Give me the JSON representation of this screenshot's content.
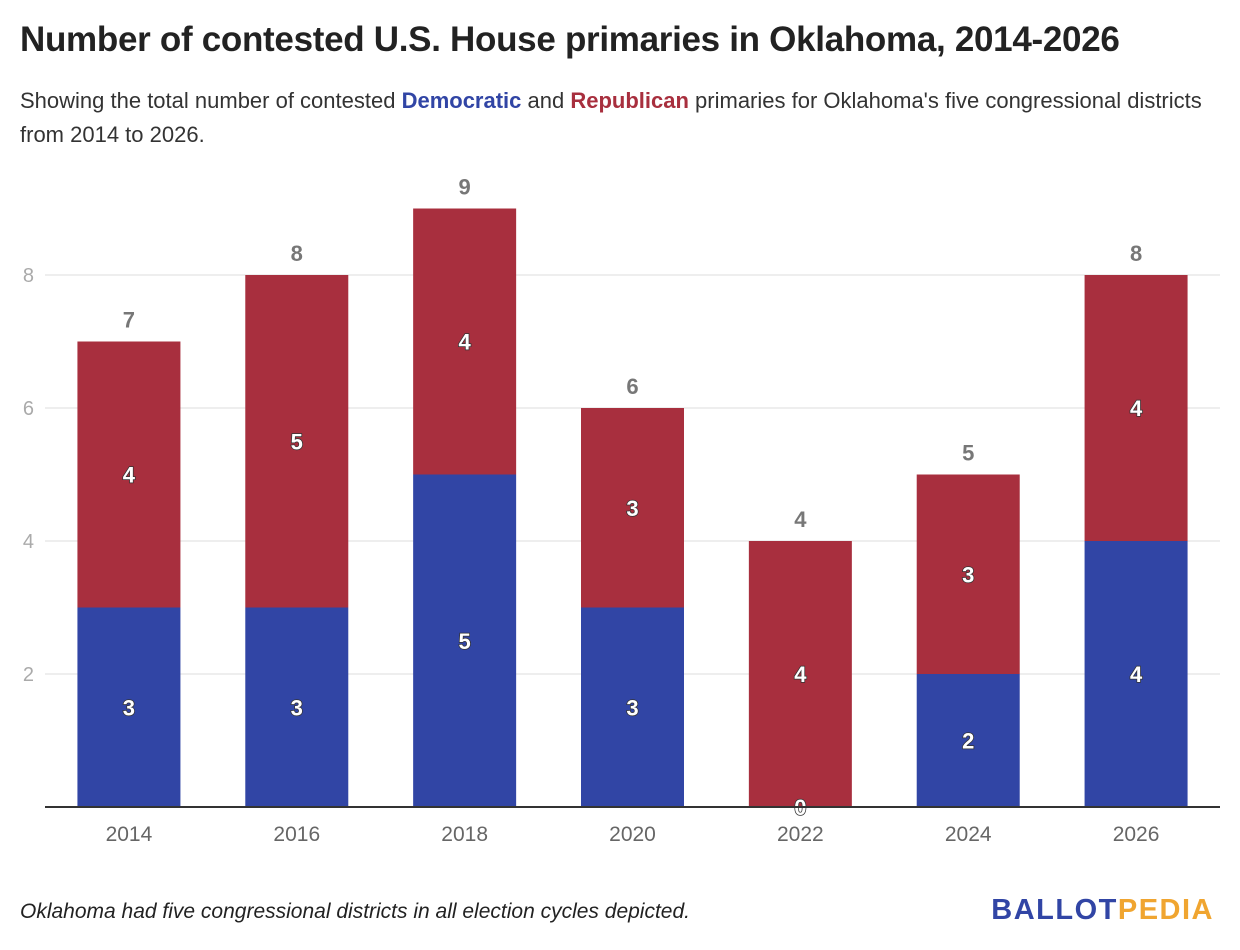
{
  "header": {
    "title": "Number of contested U.S. House primaries in Oklahoma, 2014-2026",
    "subtitle_prefix": "Showing the total number of contested ",
    "subtitle_dem": "Democratic",
    "subtitle_and": " and ",
    "subtitle_rep": "Republican",
    "subtitle_suffix": " primaries for Oklahoma's five congressional districts from 2014 to 2026."
  },
  "footer": {
    "note": "Oklahoma had five congressional districts in all election cycles depicted.",
    "logo_part1": "BALLOT",
    "logo_part2": "PEDIA"
  },
  "colors": {
    "democratic": "#3145a5",
    "republican": "#a82f3e",
    "total_label": "#777777",
    "grid": "#dddddd",
    "axis": "#333333",
    "tick_label": "#aaaaaa",
    "x_label": "#666666"
  },
  "chart_data": {
    "type": "bar",
    "stacked": true,
    "categories": [
      "2014",
      "2016",
      "2018",
      "2020",
      "2022",
      "2024",
      "2026"
    ],
    "series": [
      {
        "name": "Democratic",
        "values": [
          3,
          3,
          5,
          3,
          0,
          2,
          4
        ]
      },
      {
        "name": "Republican",
        "values": [
          4,
          5,
          4,
          3,
          4,
          3,
          4
        ]
      }
    ],
    "totals": [
      7,
      8,
      9,
      6,
      4,
      5,
      8
    ],
    "yticks": [
      2,
      4,
      6,
      8
    ],
    "ylim": [
      0,
      9.5
    ],
    "grid": true,
    "xlabel": "",
    "ylabel": ""
  }
}
